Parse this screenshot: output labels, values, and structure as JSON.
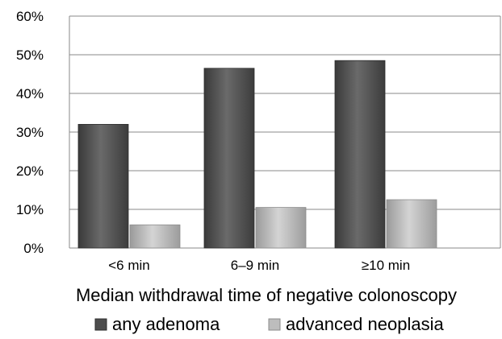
{
  "chart_data": {
    "type": "bar",
    "title": "",
    "xlabel": "Median withdrawal time of negative colonoscopy",
    "ylabel": "",
    "categories": [
      "<6 min",
      "6–9 min",
      "≥10 min"
    ],
    "series": [
      {
        "name": "any adenoma",
        "values": [
          32,
          46.5,
          48.5
        ],
        "color": "#4d4d4d"
      },
      {
        "name": "advanced neoplasia",
        "values": [
          6,
          10.5,
          12.5
        ],
        "color": "#b3b3b3"
      }
    ],
    "ylim": [
      0,
      60
    ],
    "yticks": [
      0,
      10,
      20,
      30,
      40,
      50,
      60
    ],
    "ytick_labels": [
      "0%",
      "10%",
      "20%",
      "30%",
      "40%",
      "50%",
      "60%"
    ],
    "grid": true,
    "legend_position": "bottom"
  }
}
